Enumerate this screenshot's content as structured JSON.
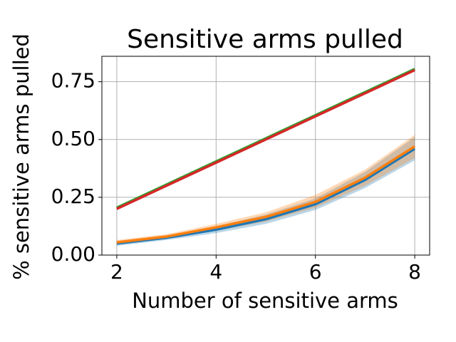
{
  "chart_data": {
    "type": "line",
    "title": "Sensitive arms pulled",
    "x_label": "Number of sensitive arms",
    "y_label": "% sensitive arms pulled",
    "x": [
      2,
      3,
      4,
      5,
      6,
      7,
      8
    ],
    "series": [
      {
        "color": "#1f77b4",
        "values": [
          0.05,
          0.075,
          0.11,
          0.155,
          0.22,
          0.325,
          0.46
        ],
        "lower": [
          0.04,
          0.065,
          0.095,
          0.135,
          0.195,
          0.29,
          0.41
        ],
        "upper": [
          0.06,
          0.085,
          0.125,
          0.175,
          0.245,
          0.36,
          0.51
        ]
      },
      {
        "color": "#ff7f0e",
        "values": [
          0.055,
          0.08,
          0.12,
          0.165,
          0.23,
          0.335,
          0.47
        ],
        "lower": [
          0.045,
          0.07,
          0.105,
          0.145,
          0.205,
          0.3,
          0.42
        ],
        "upper": [
          0.065,
          0.09,
          0.135,
          0.185,
          0.26,
          0.37,
          0.52
        ]
      },
      {
        "color": "#2ca02c",
        "values": [
          0.205,
          0.305,
          0.405,
          0.505,
          0.605,
          0.705,
          0.805
        ],
        "lower": [
          0.2,
          0.3,
          0.4,
          0.5,
          0.6,
          0.7,
          0.8
        ],
        "upper": [
          0.21,
          0.31,
          0.41,
          0.51,
          0.61,
          0.71,
          0.81
        ]
      },
      {
        "color": "#d62728",
        "values": [
          0.2,
          0.3,
          0.4,
          0.5,
          0.6,
          0.7,
          0.8
        ],
        "lower": [
          0.195,
          0.295,
          0.395,
          0.495,
          0.595,
          0.695,
          0.795
        ],
        "upper": [
          0.205,
          0.305,
          0.405,
          0.505,
          0.605,
          0.705,
          0.805
        ]
      }
    ],
    "xlim": [
      1.7,
      8.3
    ],
    "ylim": [
      0,
      0.86
    ],
    "xticks": [
      2,
      4,
      6,
      8
    ],
    "yticks": [
      {
        "value": 0,
        "label": "0.00"
      },
      {
        "value": 0.25,
        "label": "0.25"
      },
      {
        "value": 0.5,
        "label": "0.50"
      },
      {
        "value": 0.75,
        "label": "0.75"
      }
    ],
    "grid": true
  }
}
